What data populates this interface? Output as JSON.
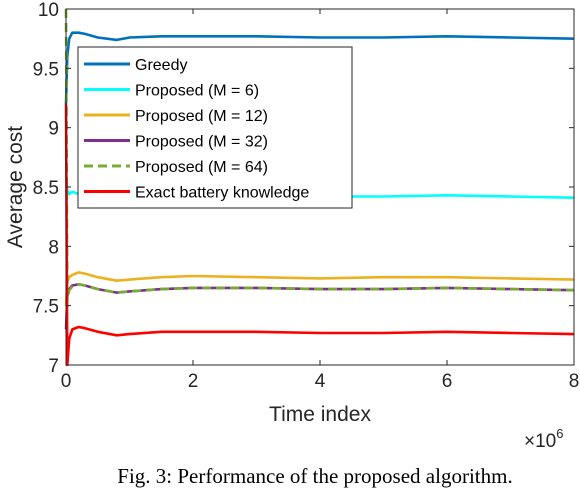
{
  "chart_data": {
    "type": "line",
    "xlabel": "Time index",
    "ylabel": "Average cost",
    "x_multiplier": "×10",
    "x_multiplier_exp": "6",
    "xlim": [
      0,
      8
    ],
    "ylim": [
      7,
      10
    ],
    "xticks": [
      "0",
      "2",
      "4",
      "6",
      "8"
    ],
    "yticks": [
      "7",
      "7.5",
      "8",
      "8.5",
      "9",
      "9.5",
      "10"
    ],
    "legend_position": "top-left",
    "grid": false,
    "series": [
      {
        "name": "Greedy",
        "color": "#0072BD",
        "dashed": false,
        "x": [
          0,
          0.02,
          0.05,
          0.1,
          0.2,
          0.3,
          0.5,
          0.8,
          1,
          1.5,
          2,
          3,
          4,
          5,
          6,
          7,
          8
        ],
        "y": [
          9.2,
          9.6,
          9.75,
          9.8,
          9.8,
          9.79,
          9.76,
          9.74,
          9.76,
          9.77,
          9.77,
          9.77,
          9.76,
          9.76,
          9.77,
          9.76,
          9.75
        ]
      },
      {
        "name": "Proposed (M = 6)",
        "color": "#00FFFF",
        "dashed": false,
        "x": [
          0,
          0.02,
          0.05,
          0.1,
          0.2,
          0.3,
          0.5,
          0.8,
          1,
          1.5,
          2,
          3,
          4,
          5,
          6,
          7,
          8
        ],
        "y": [
          8.6,
          8.47,
          8.44,
          8.46,
          8.44,
          8.43,
          8.42,
          8.41,
          8.42,
          8.43,
          8.43,
          8.43,
          8.42,
          8.42,
          8.43,
          8.42,
          8.41
        ]
      },
      {
        "name": "Proposed (M = 12)",
        "color": "#EDB120",
        "dashed": false,
        "x": [
          0,
          0.02,
          0.05,
          0.1,
          0.2,
          0.3,
          0.5,
          0.8,
          1,
          1.5,
          2,
          3,
          4,
          5,
          6,
          7,
          8
        ],
        "y": [
          7.5,
          7.7,
          7.74,
          7.76,
          7.78,
          7.77,
          7.74,
          7.71,
          7.72,
          7.74,
          7.75,
          7.74,
          7.73,
          7.74,
          7.74,
          7.73,
          7.72
        ]
      },
      {
        "name": "Proposed (M = 32)",
        "color": "#7E2F8E",
        "dashed": false,
        "x": [
          0,
          0.02,
          0.05,
          0.1,
          0.2,
          0.3,
          0.5,
          0.8,
          1,
          1.5,
          2,
          3,
          4,
          5,
          6,
          7,
          8
        ],
        "y": [
          7.3,
          7.58,
          7.64,
          7.67,
          7.68,
          7.67,
          7.64,
          7.61,
          7.62,
          7.64,
          7.65,
          7.65,
          7.64,
          7.64,
          7.65,
          7.64,
          7.63
        ]
      },
      {
        "name": "Proposed (M = 64)",
        "color": "#77AC30",
        "dashed": true,
        "x": [
          0,
          0.02,
          0.05,
          0.1,
          0.2,
          0.3,
          0.5,
          0.8,
          1,
          1.5,
          2,
          3,
          4,
          5,
          6,
          7,
          8
        ],
        "y": [
          10.0,
          7.56,
          7.63,
          7.66,
          7.68,
          7.67,
          7.64,
          7.61,
          7.62,
          7.64,
          7.65,
          7.65,
          7.64,
          7.64,
          7.65,
          7.64,
          7.63
        ]
      },
      {
        "name": "Exact battery knowledge",
        "color": "#FF0000",
        "dashed": false,
        "x": [
          0,
          0.02,
          0.05,
          0.1,
          0.2,
          0.3,
          0.5,
          0.8,
          1,
          1.5,
          2,
          3,
          4,
          5,
          6,
          7,
          8
        ],
        "y": [
          9.2,
          7.0,
          7.22,
          7.3,
          7.32,
          7.31,
          7.28,
          7.25,
          7.26,
          7.28,
          7.28,
          7.28,
          7.27,
          7.27,
          7.28,
          7.27,
          7.26
        ]
      }
    ]
  },
  "caption": "Fig. 3: Performance of the proposed algorithm."
}
